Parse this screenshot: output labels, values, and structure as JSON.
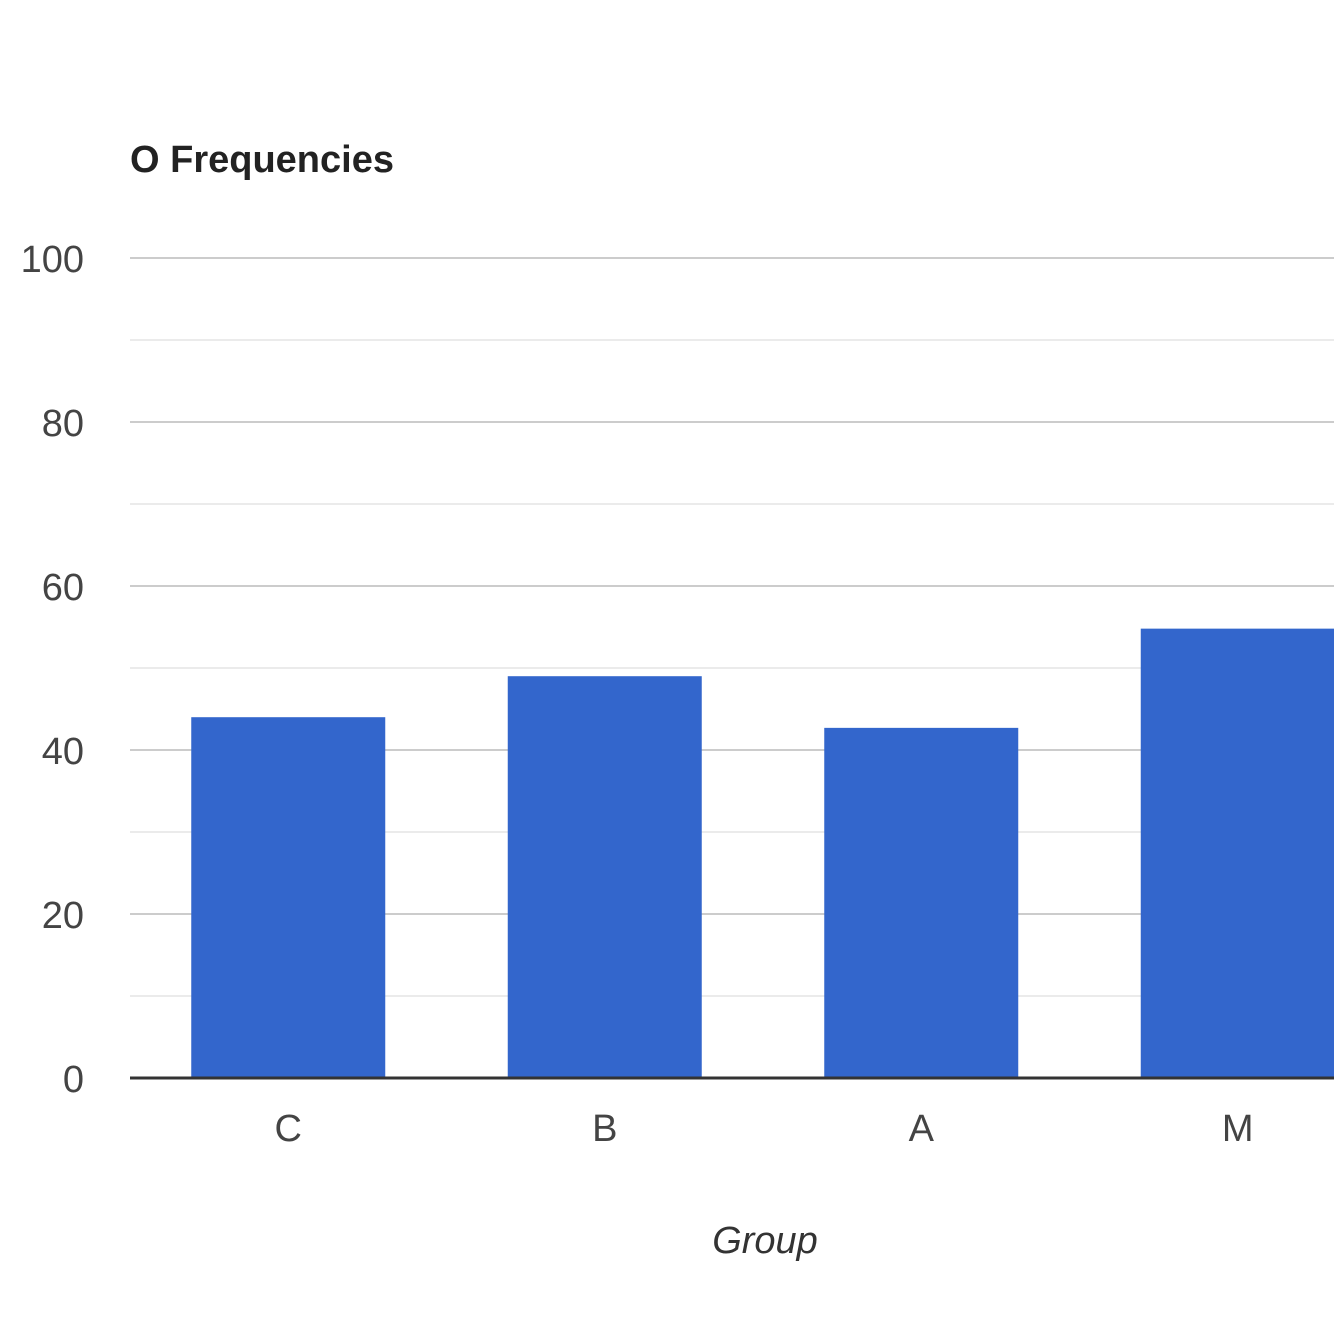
{
  "chart_data": {
    "type": "bar",
    "title": "O Frequencies",
    "xlabel": "Group",
    "ylabel": "",
    "categories": [
      "C",
      "B",
      "A",
      "M"
    ],
    "series": [
      {
        "values": [
          44,
          49,
          42.7,
          54.8
        ]
      }
    ],
    "ylim": [
      0,
      100
    ],
    "yticks": [
      0,
      20,
      40,
      60,
      80,
      100
    ],
    "grid": true,
    "legend": "none",
    "colors": {
      "bar": "#3366cc",
      "gridline": "#cccccc",
      "minor_gridline": "#ebebeb",
      "baseline": "#333333"
    }
  }
}
